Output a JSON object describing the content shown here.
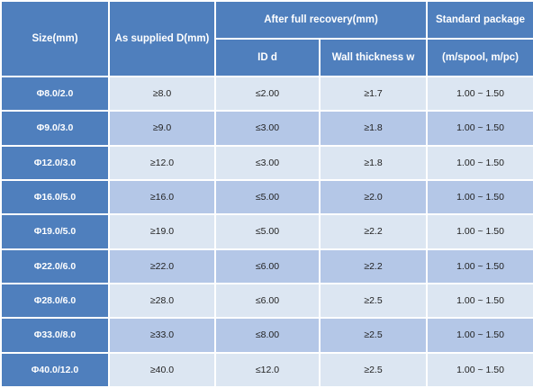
{
  "header": {
    "size": "Size(mm)",
    "as_supplied": "As supplied D(mm)",
    "after_recovery": "After full recovery(mm)",
    "id_d": "ID d",
    "wall_thickness": "Wall thickness w",
    "standard_package": "Standard package",
    "package_unit": "(m/spool, m/pc)"
  },
  "rows": [
    {
      "size": "Φ8.0/2.0",
      "as_supplied": "≥8.0",
      "id": "≤2.00",
      "wall": "≥1.7",
      "package": "1.00 ~ 1.50"
    },
    {
      "size": "Φ9.0/3.0",
      "as_supplied": "≥9.0",
      "id": "≤3.00",
      "wall": "≥1.8",
      "package": "1.00 ~ 1.50"
    },
    {
      "size": "Φ12.0/3.0",
      "as_supplied": "≥12.0",
      "id": "≤3.00",
      "wall": "≥1.8",
      "package": "1.00 ~ 1.50"
    },
    {
      "size": "Φ16.0/5.0",
      "as_supplied": "≥16.0",
      "id": "≤5.00",
      "wall": "≥2.0",
      "package": "1.00 ~ 1.50"
    },
    {
      "size": "Φ19.0/5.0",
      "as_supplied": "≥19.0",
      "id": "≤5.00",
      "wall": "≥2.2",
      "package": "1.00 ~ 1.50"
    },
    {
      "size": "Φ22.0/6.0",
      "as_supplied": "≥22.0",
      "id": "≤6.00",
      "wall": "≥2.2",
      "package": "1.00 ~ 1.50"
    },
    {
      "size": "Φ28.0/6.0",
      "as_supplied": "≥28.0",
      "id": "≤6.00",
      "wall": "≥2.5",
      "package": "1.00 ~ 1.50"
    },
    {
      "size": "Φ33.0/8.0",
      "as_supplied": "≥33.0",
      "id": "≤8.00",
      "wall": "≥2.5",
      "package": "1.00 ~ 1.50"
    },
    {
      "size": "Φ40.0/12.0",
      "as_supplied": "≥40.0",
      "id": "≤12.0",
      "wall": "≥2.5",
      "package": "1.00 ~ 1.50"
    }
  ],
  "colors": {
    "header_blue": "#4f7fbd",
    "row_light": "#dce6f2",
    "row_dark": "#b4c7e7",
    "text_white": "#ffffff"
  }
}
